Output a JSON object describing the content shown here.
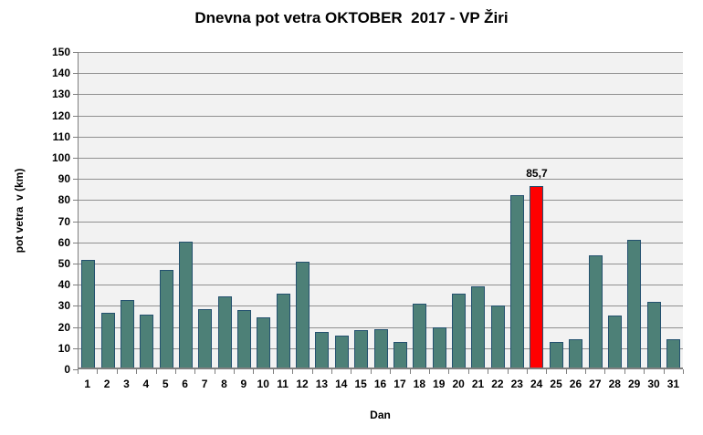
{
  "chart_data": {
    "type": "bar",
    "title": "Dnevna pot vetra OKTOBER  2017 - VP Žiri",
    "xlabel": "Dan",
    "ylabel": "pot vetra  v (km)",
    "categories": [
      "1",
      "2",
      "3",
      "4",
      "5",
      "6",
      "7",
      "8",
      "9",
      "10",
      "11",
      "12",
      "13",
      "14",
      "15",
      "16",
      "17",
      "18",
      "19",
      "20",
      "21",
      "22",
      "23",
      "24",
      "25",
      "26",
      "27",
      "28",
      "29",
      "30",
      "31"
    ],
    "values": [
      51,
      26,
      32,
      25,
      46,
      59.5,
      27.5,
      33.5,
      27,
      23.5,
      35,
      50,
      17,
      15,
      17.5,
      18,
      12,
      30,
      19,
      35,
      38.5,
      29.5,
      81.5,
      85.7,
      12,
      13.5,
      53,
      24.5,
      60.5,
      31,
      13.5
    ],
    "ylim": [
      0,
      150
    ],
    "ytick_step": 10,
    "grid": true,
    "legend": false,
    "highlight": {
      "index": 23,
      "category": "24",
      "value": 85.7,
      "data_label": "85,7"
    }
  },
  "colors": {
    "bar_fill": "#4D8077",
    "bar_border": "#24516F",
    "highlight_fill": "#FF0000",
    "plot_bg": "#F2F2F2",
    "gridline": "#909090",
    "axis": "#7F7F7F",
    "text": "#000000",
    "background": "#FFFFFF"
  }
}
